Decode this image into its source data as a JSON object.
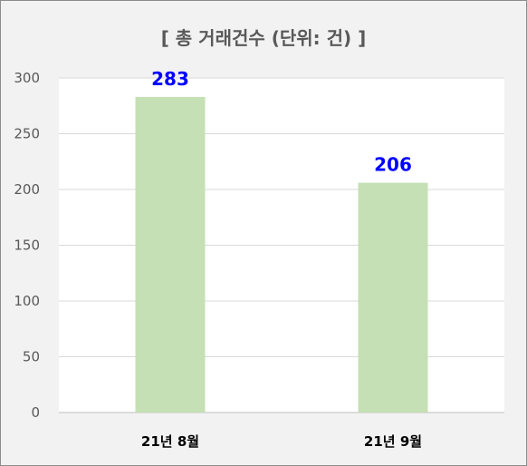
{
  "chart_data": {
    "type": "bar",
    "title": "[ 총 거래건수 (단위: 건) ]",
    "categories": [
      "21년 8월",
      "21년 9월"
    ],
    "values": [
      283,
      206
    ],
    "data_labels": [
      "283",
      "206"
    ],
    "ylim": [
      0,
      300
    ],
    "yticks": [
      0,
      50,
      100,
      150,
      200,
      250,
      300
    ],
    "grid": true,
    "legend": "none",
    "colors": {
      "bar": "#c5e0b4",
      "data_label": "#0000ff",
      "plot_background": "#ffffff",
      "chart_background": "#f2f2f2",
      "gridline": "#d9d9d9",
      "text": "#595959"
    }
  }
}
